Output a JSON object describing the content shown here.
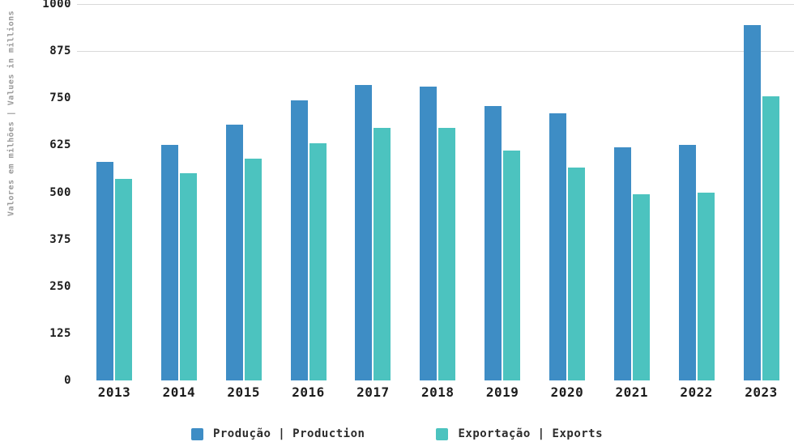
{
  "chart_data": {
    "type": "bar",
    "title": "",
    "categories": [
      "2013",
      "2014",
      "2015",
      "2016",
      "2017",
      "2018",
      "2019",
      "2020",
      "2021",
      "2022",
      "2023"
    ],
    "series": [
      {
        "name": "Produção | Production",
        "color": "#3e8dc5",
        "values": [
          580,
          625,
          680,
          745,
          785,
          780,
          730,
          710,
          620,
          625,
          945
        ]
      },
      {
        "name": "Exportação | Exports",
        "color": "#4cc3bf",
        "values": [
          535,
          550,
          590,
          630,
          670,
          670,
          610,
          565,
          495,
          500,
          755
        ]
      }
    ],
    "ylabel": "Valores em milhões | Values in millions",
    "xlabel": "",
    "ylim": [
      0,
      1000
    ],
    "yticks": [
      0,
      125,
      250,
      375,
      500,
      625,
      750,
      875,
      1000
    ],
    "gridlines_visible_at": [
      875,
      1000
    ],
    "grid": "horizontal-partial",
    "legend_position": "bottom"
  },
  "colors": {
    "production_bar": "#3e8dc5",
    "exports_bar": "#4cc3bf",
    "gridline": "#d9d9d9",
    "tick_text": "#1c1c1c",
    "axis_title_text": "#9a9a9a",
    "background": "#ffffff"
  }
}
